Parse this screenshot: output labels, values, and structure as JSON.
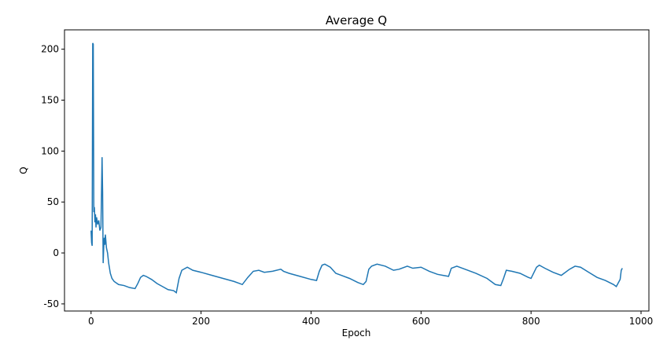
{
  "chart_data": {
    "type": "line",
    "title": "Average Q",
    "x_label": "Epoch",
    "y_label": "Q",
    "color": "#1f77b4",
    "x": [
      0,
      1,
      2,
      3,
      4,
      5,
      6,
      7,
      8,
      9,
      10,
      12,
      14,
      16,
      18,
      20,
      21,
      22,
      23,
      24,
      25,
      26,
      28,
      30,
      32,
      35,
      38,
      42,
      50,
      60,
      70,
      80,
      85,
      90,
      95,
      100,
      110,
      120,
      130,
      140,
      150,
      155,
      160,
      165,
      175,
      185,
      200,
      220,
      240,
      260,
      270,
      275,
      285,
      295,
      305,
      315,
      330,
      345,
      350,
      360,
      380,
      400,
      410,
      415,
      420,
      425,
      435,
      445,
      455,
      470,
      485,
      495,
      500,
      505,
      510,
      520,
      535,
      550,
      560,
      575,
      585,
      600,
      615,
      630,
      640,
      650,
      655,
      665,
      680,
      700,
      720,
      735,
      745,
      750,
      755,
      765,
      780,
      795,
      800,
      810,
      815,
      825,
      840,
      855,
      860,
      870,
      880,
      890,
      905,
      920,
      935,
      950,
      955,
      962,
      964,
      966
    ],
    "values": [
      22,
      10,
      7,
      206,
      205,
      40,
      45,
      30,
      38,
      25,
      35,
      28,
      32,
      22,
      25,
      94,
      60,
      -10,
      5,
      15,
      8,
      18,
      5,
      0,
      -10,
      -20,
      -25,
      -28,
      -31,
      -32,
      -34,
      -35,
      -30,
      -24,
      -22,
      -23,
      -26,
      -30,
      -33,
      -36,
      -37,
      -39,
      -25,
      -17,
      -14,
      -17,
      -19,
      -22,
      -25,
      -28,
      -30,
      -31,
      -24,
      -18,
      -17,
      -19,
      -18,
      -16,
      -18,
      -20,
      -23,
      -26,
      -27,
      -18,
      -12,
      -11,
      -14,
      -20,
      -22,
      -25,
      -29,
      -31,
      -28,
      -16,
      -13,
      -11,
      -13,
      -17,
      -16,
      -13,
      -15,
      -14,
      -18,
      -21,
      -22,
      -23,
      -15,
      -13,
      -16,
      -20,
      -25,
      -31,
      -32,
      -25,
      -17,
      -18,
      -20,
      -24,
      -25,
      -14,
      -12,
      -15,
      -19,
      -22,
      -20,
      -16,
      -13,
      -14,
      -19,
      -24,
      -27,
      -31,
      -33,
      -26,
      -17,
      -15
    ],
    "xlim": [
      -48.3,
      1014.3
    ],
    "ylim": [
      -57,
      219
    ],
    "xticks": [
      0,
      200,
      400,
      600,
      800,
      1000
    ],
    "yticks": [
      -50,
      0,
      50,
      100,
      150,
      200
    ]
  }
}
